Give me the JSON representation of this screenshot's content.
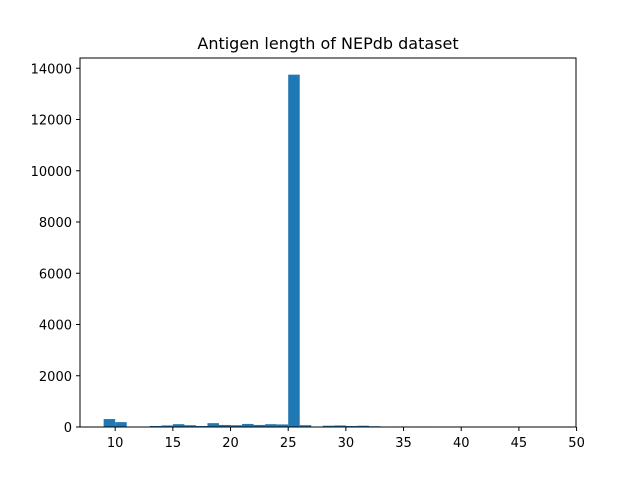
{
  "chart_data": {
    "type": "bar",
    "title": "Antigen length of NEPdb dataset",
    "xlabel": "",
    "ylabel": "",
    "xlim": [
      6.95,
      49.95
    ],
    "ylim": [
      0,
      14400
    ],
    "x_ticks": [
      10,
      15,
      20,
      25,
      30,
      35,
      40,
      45,
      50
    ],
    "y_ticks": [
      0,
      2000,
      4000,
      6000,
      8000,
      10000,
      12000,
      14000
    ],
    "grid": false,
    "bar_color": "#1f77b4",
    "bins": [
      {
        "x0": 9.0,
        "x1": 10.0,
        "value": 310
      },
      {
        "x0": 10.0,
        "x1": 11.0,
        "value": 190
      },
      {
        "x0": 11.0,
        "x1": 12.0,
        "value": 0
      },
      {
        "x0": 12.0,
        "x1": 13.0,
        "value": 0
      },
      {
        "x0": 13.0,
        "x1": 14.0,
        "value": 40
      },
      {
        "x0": 14.0,
        "x1": 15.0,
        "value": 60
      },
      {
        "x0": 15.0,
        "x1": 16.0,
        "value": 110
      },
      {
        "x0": 16.0,
        "x1": 17.0,
        "value": 70
      },
      {
        "x0": 17.0,
        "x1": 18.0,
        "value": 40
      },
      {
        "x0": 18.0,
        "x1": 19.0,
        "value": 150
      },
      {
        "x0": 19.0,
        "x1": 20.0,
        "value": 80
      },
      {
        "x0": 20.0,
        "x1": 21.0,
        "value": 70
      },
      {
        "x0": 21.0,
        "x1": 22.0,
        "value": 120
      },
      {
        "x0": 22.0,
        "x1": 23.0,
        "value": 80
      },
      {
        "x0": 23.0,
        "x1": 24.0,
        "value": 110
      },
      {
        "x0": 24.0,
        "x1": 25.0,
        "value": 100
      },
      {
        "x0": 25.0,
        "x1": 26.0,
        "value": 13750
      },
      {
        "x0": 26.0,
        "x1": 27.0,
        "value": 70
      },
      {
        "x0": 27.0,
        "x1": 28.0,
        "value": 20
      },
      {
        "x0": 28.0,
        "x1": 29.0,
        "value": 50
      },
      {
        "x0": 29.0,
        "x1": 30.0,
        "value": 60
      },
      {
        "x0": 30.0,
        "x1": 31.0,
        "value": 40
      },
      {
        "x0": 31.0,
        "x1": 32.0,
        "value": 50
      },
      {
        "x0": 32.0,
        "x1": 33.0,
        "value": 30
      },
      {
        "x0": 33.0,
        "x1": 34.0,
        "value": 10
      },
      {
        "x0": 34.0,
        "x1": 35.0,
        "value": 20
      },
      {
        "x0": 35.0,
        "x1": 36.0,
        "value": 10
      },
      {
        "x0": 36.0,
        "x1": 37.0,
        "value": 20
      },
      {
        "x0": 37.0,
        "x1": 38.0,
        "value": 8
      },
      {
        "x0": 38.0,
        "x1": 39.0,
        "value": 6
      },
      {
        "x0": 39.0,
        "x1": 40.0,
        "value": 5
      },
      {
        "x0": 40.0,
        "x1": 41.0,
        "value": 4
      },
      {
        "x0": 41.0,
        "x1": 42.0,
        "value": 3
      },
      {
        "x0": 42.0,
        "x1": 43.0,
        "value": 3
      },
      {
        "x0": 43.0,
        "x1": 44.0,
        "value": 2
      },
      {
        "x0": 44.0,
        "x1": 45.0,
        "value": 2
      },
      {
        "x0": 45.0,
        "x1": 46.0,
        "value": 2
      },
      {
        "x0": 46.0,
        "x1": 47.0,
        "value": 1
      },
      {
        "x0": 47.0,
        "x1": 48.0,
        "value": 1
      }
    ]
  }
}
